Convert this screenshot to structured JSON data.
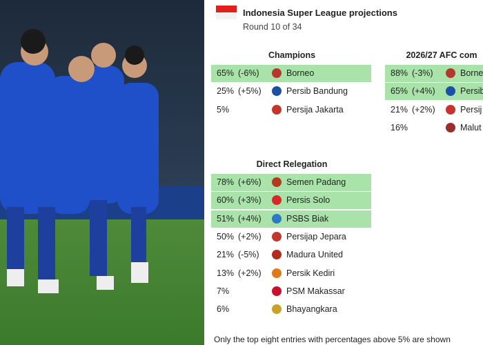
{
  "header": {
    "title": "Indonesia Super League projections",
    "subtitle": "Round 10 of 34"
  },
  "sections": [
    {
      "title": "Champions",
      "rows": [
        {
          "pct": "65%",
          "change": "(-6%)",
          "team": "Borneo",
          "highlight": true
        },
        {
          "pct": "25%",
          "change": "(+5%)",
          "team": "Persib Bandung",
          "highlight": false
        },
        {
          "pct": "5%",
          "change": "",
          "team": "Persija Jakarta",
          "highlight": false
        }
      ]
    },
    {
      "title": "2026/27 AFC com",
      "rows": [
        {
          "pct": "88%",
          "change": "(-3%)",
          "team": "Borne",
          "highlight": true
        },
        {
          "pct": "65%",
          "change": "(+4%)",
          "team": "Persib",
          "highlight": true
        },
        {
          "pct": "21%",
          "change": "(+2%)",
          "team": "Persij",
          "highlight": false
        },
        {
          "pct": "16%",
          "change": "",
          "team": "Malut",
          "highlight": false
        }
      ]
    },
    {
      "title": "Direct Relegation",
      "rows": [
        {
          "pct": "78%",
          "change": "(+6%)",
          "team": "Semen Padang",
          "highlight": true
        },
        {
          "pct": "60%",
          "change": "(+3%)",
          "team": "Persis Solo",
          "highlight": true
        },
        {
          "pct": "51%",
          "change": "(+4%)",
          "team": "PSBS Biak",
          "highlight": true
        },
        {
          "pct": "50%",
          "change": "(+2%)",
          "team": "Persijap Jepara",
          "highlight": false
        },
        {
          "pct": "21%",
          "change": "(-5%)",
          "team": "Madura United",
          "highlight": false
        },
        {
          "pct": "13%",
          "change": "(+2%)",
          "team": "Persik Kediri",
          "highlight": false
        },
        {
          "pct": "7%",
          "change": "",
          "team": "PSM Makassar",
          "highlight": false
        },
        {
          "pct": "6%",
          "change": "",
          "team": "Bhayangkara",
          "highlight": false
        }
      ]
    }
  ],
  "footnote": "Only the top eight entries with percentages above 5% are shown"
}
